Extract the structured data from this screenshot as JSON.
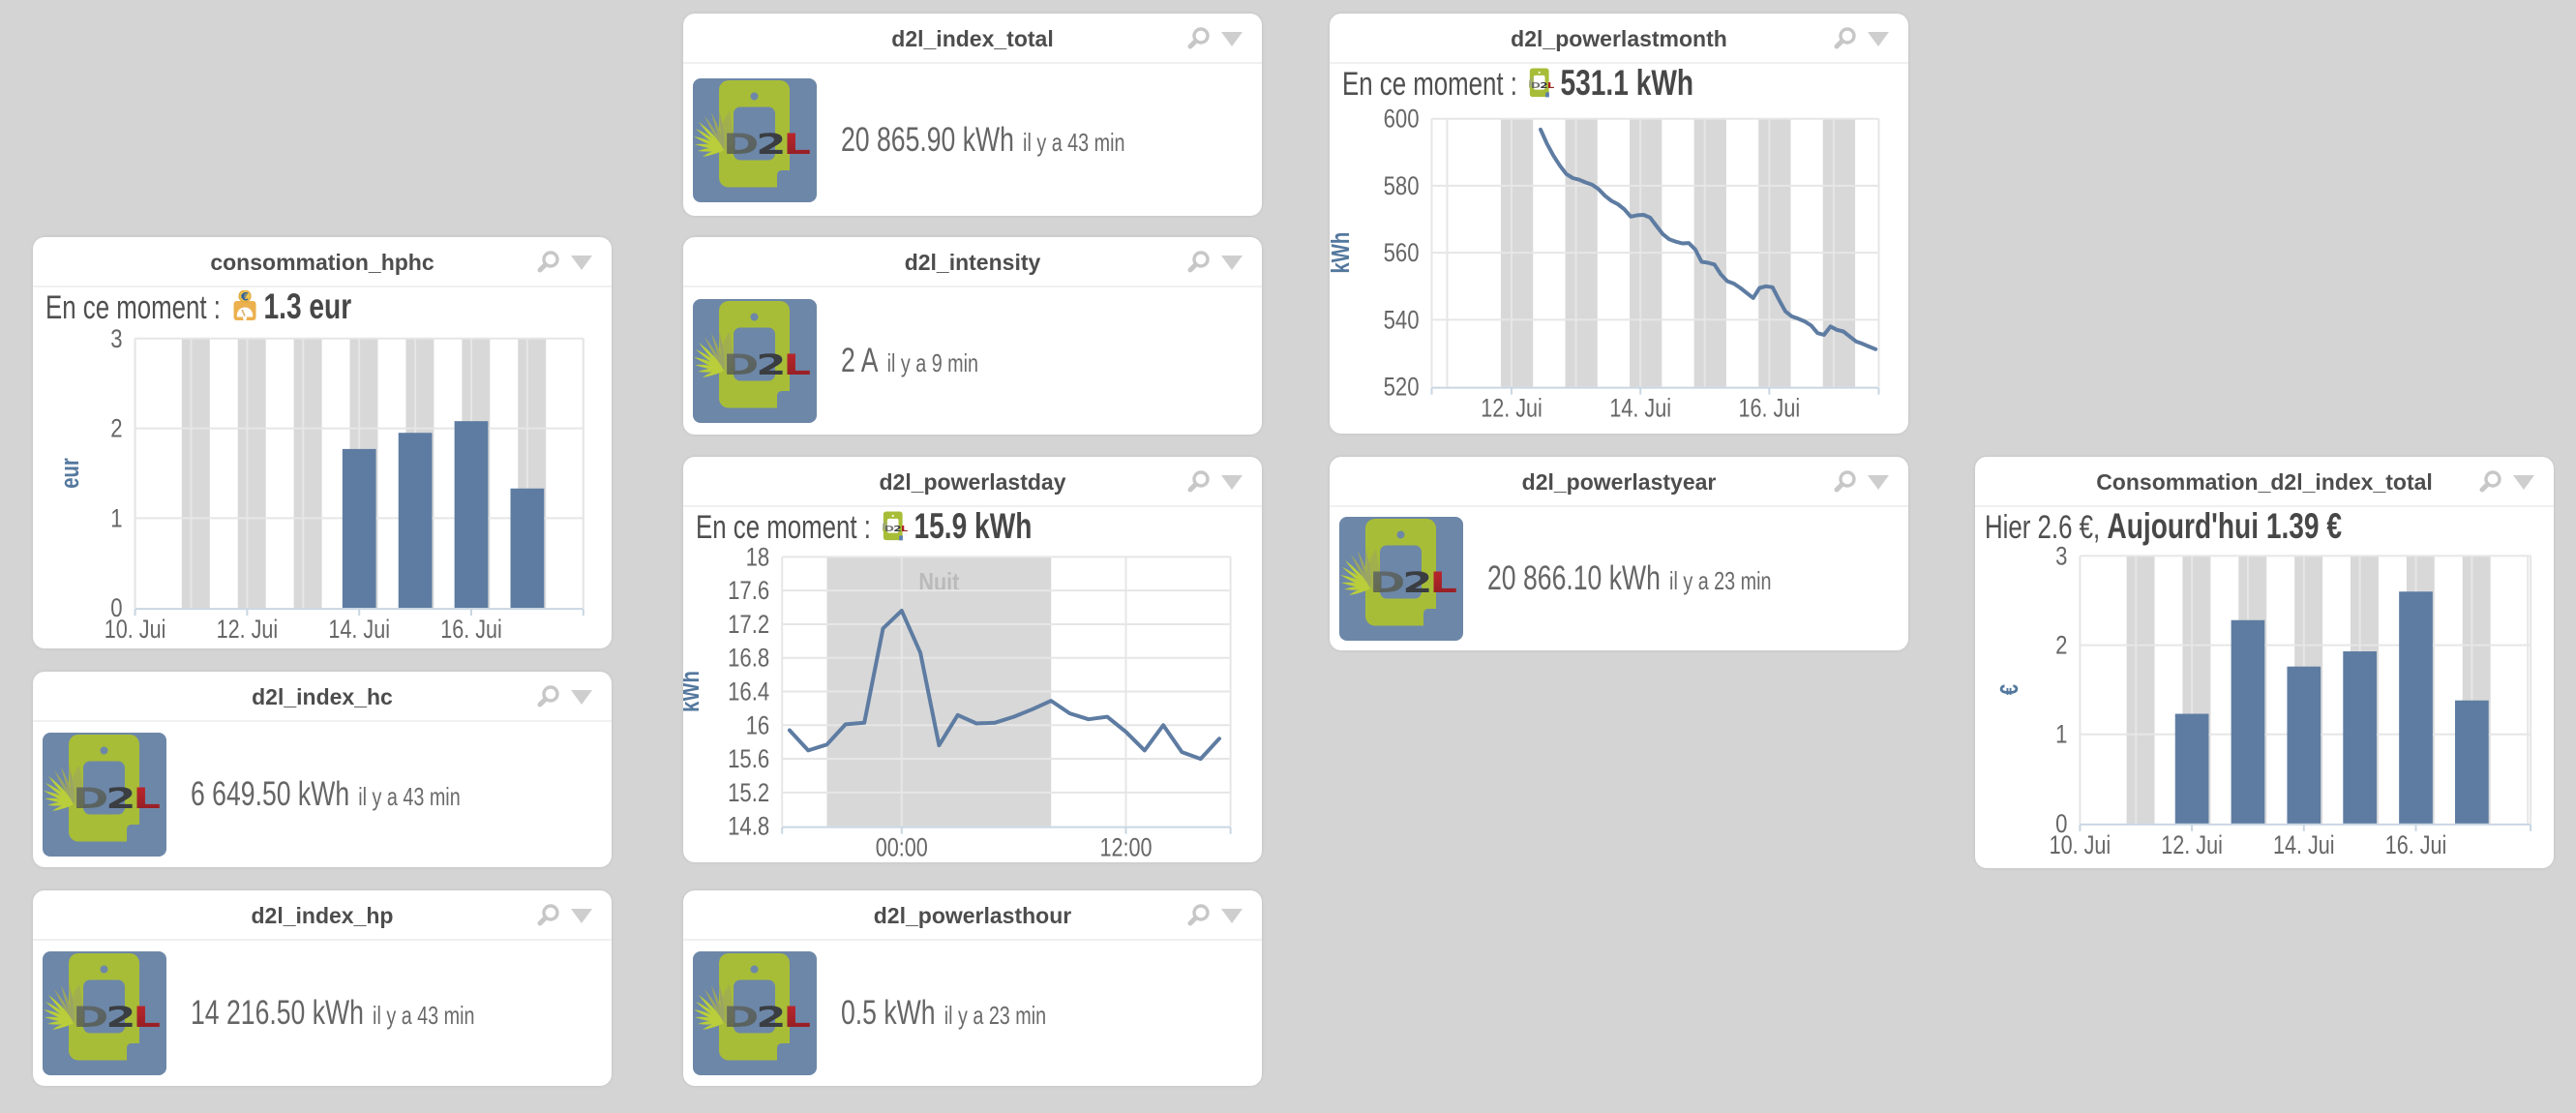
{
  "page": {
    "background": "#d4d4d4"
  },
  "colors": {
    "series_blue": "#5e7ca2",
    "axis_title_blue": "#54789e",
    "night_band_grey": "#d8d8d8",
    "gridline": "#e6e6e6",
    "axis_line": "#c9d6e2",
    "label_grey": "#666666",
    "band_label_grey": "#bababa",
    "logo_blue": "#6d87a8",
    "logo_green": "#a8bd37",
    "logo_red": "#b2242a"
  },
  "widgets": {
    "consommation_hphc": {
      "title": "consommation_hphc",
      "current_label": "En ce moment : ",
      "current_value": "1.3 eur",
      "icon": "cost-gauge-icon"
    },
    "d2l_index_total": {
      "title": "d2l_index_total",
      "value": "20 865.90 kWh",
      "ago": "il y a 43 min",
      "icon": "d2l-logo"
    },
    "d2l_intensity": {
      "title": "d2l_intensity",
      "value": "2 A",
      "ago": "il y a 9 min",
      "icon": "d2l-logo"
    },
    "d2l_powerlastday": {
      "title": "d2l_powerlastday",
      "current_label": "En ce moment : ",
      "current_value": "15.9 kWh",
      "icon": "d2l-mini-icon"
    },
    "d2l_powerlastmonth": {
      "title": "d2l_powerlastmonth",
      "current_label": "En ce moment : ",
      "current_value": "531.1 kWh",
      "icon": "d2l-mini-icon"
    },
    "d2l_powerlastyear": {
      "title": "d2l_powerlastyear",
      "value": "20 866.10 kWh",
      "ago": "il y a 23 min",
      "icon": "d2l-logo"
    },
    "d2l_powerlasthour": {
      "title": "d2l_powerlasthour",
      "value": "0.5 kWh",
      "ago": "il y a 23 min",
      "icon": "d2l-logo"
    },
    "d2l_index_hc": {
      "title": "d2l_index_hc",
      "value": "6 649.50 kWh",
      "ago": "il y a 43 min",
      "icon": "d2l-logo"
    },
    "d2l_index_hp": {
      "title": "d2l_index_hp",
      "value": "14 216.50 kWh",
      "ago": "il y a 43 min",
      "icon": "d2l-logo"
    },
    "consommation_d2l_index_total": {
      "title": "Consommation_d2l_index_total",
      "subtitle_normal": "Hier 2.6 €, ",
      "subtitle_bold": "Aujourd'hui 1.39 €"
    }
  },
  "chart_data": [
    {
      "id": "consommation_hphc",
      "type": "bar",
      "title": "consommation_hphc",
      "ylabel": "eur",
      "x_unit": "day of June",
      "x_range": [
        10,
        18
      ],
      "y_range": [
        0,
        3
      ],
      "y_ticks": [
        {
          "v": 0,
          "label": "0"
        },
        {
          "v": 1,
          "label": "1"
        },
        {
          "v": 2,
          "label": "2"
        },
        {
          "v": 3,
          "label": "3"
        }
      ],
      "x_ticks": [
        {
          "v": 10,
          "label": "10. Jui"
        },
        {
          "v": 12,
          "label": "12. Jui"
        },
        {
          "v": 14,
          "label": "14. Jui"
        },
        {
          "v": 16,
          "label": "16. Jui"
        }
      ],
      "day_gridlines": [
        10,
        11,
        12,
        13,
        14,
        15,
        16,
        17,
        18
      ],
      "night_bands": [
        {
          "from": 10.833,
          "to": 11.333
        },
        {
          "from": 11.833,
          "to": 12.333
        },
        {
          "from": 12.833,
          "to": 13.333
        },
        {
          "from": 13.833,
          "to": 14.333
        },
        {
          "from": 14.833,
          "to": 15.333
        },
        {
          "from": 15.833,
          "to": 16.333
        },
        {
          "from": 16.833,
          "to": 17.333
        }
      ],
      "categories": [
        14,
        15,
        16,
        17
      ],
      "values": [
        1.77,
        1.95,
        2.08,
        1.33
      ],
      "bar_width_days": 0.6,
      "current": "1.3 eur",
      "grid": true,
      "legend": false
    },
    {
      "id": "d2l_powerlastday",
      "type": "line",
      "title": "d2l_powerlastday",
      "ylabel": "kWh",
      "x_unit": "hours relative to midnight",
      "x_range": [
        -6.4,
        17.6
      ],
      "y_range": [
        14.8,
        18
      ],
      "y_ticks": [
        {
          "v": 14.8,
          "label": "14.8"
        },
        {
          "v": 15.2,
          "label": "15.2"
        },
        {
          "v": 15.6,
          "label": "15.6"
        },
        {
          "v": 16,
          "label": "16"
        },
        {
          "v": 16.4,
          "label": "16.4"
        },
        {
          "v": 16.8,
          "label": "16.8"
        },
        {
          "v": 17.2,
          "label": "17.2"
        },
        {
          "v": 17.6,
          "label": "17.6"
        },
        {
          "v": 18,
          "label": "18"
        }
      ],
      "x_ticks": [
        {
          "v": 0,
          "label": "00:00"
        },
        {
          "v": 12,
          "label": "12:00"
        }
      ],
      "day_gridlines": [
        0,
        12
      ],
      "night_bands": [
        {
          "from": -4,
          "to": 8,
          "label": "Nuit"
        }
      ],
      "x": [
        -6,
        -5,
        -4,
        -3,
        -2,
        -1,
        0,
        1,
        2,
        3,
        4,
        5,
        6,
        7,
        8,
        9,
        10,
        11,
        12,
        13,
        14,
        15,
        16,
        17
      ],
      "y": [
        15.94,
        15.7,
        15.77,
        16.01,
        16.03,
        17.15,
        17.36,
        16.86,
        15.76,
        16.12,
        16.02,
        16.03,
        16.1,
        16.19,
        16.29,
        16.14,
        16.07,
        16.1,
        15.92,
        15.7,
        16.0,
        15.68,
        15.6,
        15.84
      ],
      "current": "15.9 kWh",
      "grid": true,
      "legend": false
    },
    {
      "id": "d2l_powerlastmonth",
      "type": "line",
      "title": "d2l_powerlastmonth",
      "ylabel": "kWh",
      "x_unit": "day of June",
      "x_range": [
        10.76,
        17.7
      ],
      "y_range": [
        520,
        600
      ],
      "y_ticks": [
        {
          "v": 520,
          "label": "520"
        },
        {
          "v": 540,
          "label": "540"
        },
        {
          "v": 560,
          "label": "560"
        },
        {
          "v": 580,
          "label": "580"
        },
        {
          "v": 600,
          "label": "600"
        }
      ],
      "x_ticks": [
        {
          "v": 12,
          "label": "12. Jui"
        },
        {
          "v": 14,
          "label": "14. Jui"
        },
        {
          "v": 16,
          "label": "16. Jui"
        }
      ],
      "day_gridlines": [
        11,
        12,
        13,
        14,
        15,
        16,
        17
      ],
      "night_bands": [
        {
          "from": 11.833,
          "to": 12.333
        },
        {
          "from": 12.833,
          "to": 13.333
        },
        {
          "from": 13.833,
          "to": 14.333
        },
        {
          "from": 14.833,
          "to": 15.333
        },
        {
          "from": 15.833,
          "to": 16.333
        },
        {
          "from": 16.833,
          "to": 17.333
        }
      ],
      "x_start": 12.45,
      "x_step": 0.1,
      "y": [
        596.8,
        592.5,
        589.0,
        586.0,
        583.5,
        582.3,
        581.8,
        581.0,
        580.3,
        579.0,
        577.0,
        575.5,
        574.5,
        573.0,
        570.8,
        571.2,
        571.3,
        570.5,
        568.0,
        565.5,
        564.0,
        563.3,
        562.8,
        562.9,
        561.0,
        557.3,
        557.0,
        556.5,
        553.5,
        551.5,
        550.8,
        549.5,
        548.0,
        546.5,
        549.5,
        550.0,
        549.7,
        546.0,
        542.5,
        541.0,
        540.3,
        539.5,
        538.3,
        536.0,
        535.5,
        538.0,
        537.0,
        536.5,
        535.0,
        533.5,
        532.8,
        532.0,
        531.2
      ],
      "current": "531.1 kWh",
      "grid": true,
      "legend": false
    },
    {
      "id": "consommation_d2l_index_total",
      "type": "bar",
      "title": "Consommation_d2l_index_total",
      "ylabel": "€",
      "x_unit": "day of June",
      "x_range": [
        10,
        18.05
      ],
      "y_range": [
        0,
        3
      ],
      "y_ticks": [
        {
          "v": 0,
          "label": "0"
        },
        {
          "v": 1,
          "label": "1"
        },
        {
          "v": 2,
          "label": "2"
        },
        {
          "v": 3,
          "label": "3"
        }
      ],
      "x_ticks": [
        {
          "v": 10,
          "label": "10. Jui"
        },
        {
          "v": 12,
          "label": "12. Jui"
        },
        {
          "v": 14,
          "label": "14. Jui"
        },
        {
          "v": 16,
          "label": "16. Jui"
        }
      ],
      "day_gridlines": [
        10,
        11,
        12,
        13,
        14,
        15,
        16,
        17,
        18
      ],
      "night_bands": [
        {
          "from": 10.833,
          "to": 11.333
        },
        {
          "from": 11.833,
          "to": 12.333
        },
        {
          "from": 12.833,
          "to": 13.333
        },
        {
          "from": 13.833,
          "to": 14.333
        },
        {
          "from": 14.833,
          "to": 15.333
        },
        {
          "from": 15.833,
          "to": 16.333
        },
        {
          "from": 16.833,
          "to": 17.333
        }
      ],
      "categories": [
        12,
        13,
        14,
        15,
        16,
        17
      ],
      "values": [
        1.23,
        2.28,
        1.76,
        1.93,
        2.6,
        1.38
      ],
      "bar_width_days": 0.6,
      "yesterday": "2.6 €",
      "today": "1.39 €",
      "grid": true,
      "legend": false
    }
  ]
}
